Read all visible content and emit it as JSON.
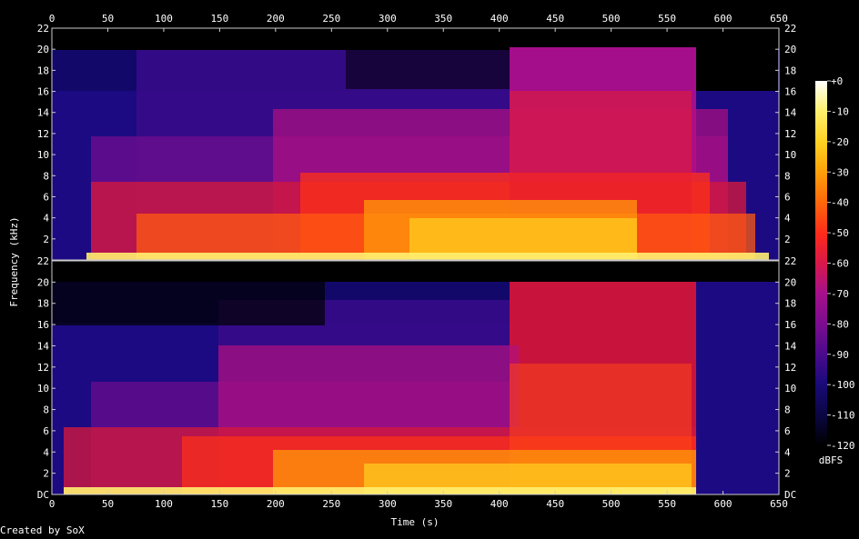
{
  "chart_data": {
    "type": "heatmap",
    "subtype": "spectrogram",
    "channels": 2,
    "xlabel": "Time (s)",
    "ylabel": "Frequency (kHz)",
    "xlim": [
      0,
      650
    ],
    "x_ticks": [
      0,
      50,
      100,
      150,
      200,
      250,
      300,
      350,
      400,
      450,
      500,
      550,
      600,
      650
    ],
    "ylim_khz": [
      0,
      22
    ],
    "y_ticks": [
      {
        "value": 22,
        "label": "22"
      },
      {
        "value": 20,
        "label": "20"
      },
      {
        "value": 18,
        "label": "18"
      },
      {
        "value": 16,
        "label": "16"
      },
      {
        "value": 14,
        "label": "14"
      },
      {
        "value": 12,
        "label": "12"
      },
      {
        "value": 10,
        "label": "10"
      },
      {
        "value": 8,
        "label": "8"
      },
      {
        "value": 6,
        "label": "6"
      },
      {
        "value": 4,
        "label": "4"
      },
      {
        "value": 2,
        "label": "2"
      }
    ],
    "bottom_dc_label": "DC",
    "colorbar": {
      "label": "dBFS",
      "range": [
        -120,
        0
      ],
      "ticks": [
        {
          "value": 0,
          "label": "+0"
        },
        {
          "value": -10,
          "label": "-10"
        },
        {
          "value": -20,
          "label": "-20"
        },
        {
          "value": -30,
          "label": "-30"
        },
        {
          "value": -40,
          "label": "-40"
        },
        {
          "value": -50,
          "label": "-50"
        },
        {
          "value": -60,
          "label": "-60"
        },
        {
          "value": -70,
          "label": "-70"
        },
        {
          "value": -80,
          "label": "-80"
        },
        {
          "value": -90,
          "label": "-90"
        },
        {
          "value": -100,
          "label": "-100"
        },
        {
          "value": -110,
          "label": "-110"
        },
        {
          "value": -120,
          "label": "-120"
        }
      ],
      "colors": [
        "#000000",
        "#0a0640",
        "#1a0a7a",
        "#4b0a8c",
        "#7a0c8f",
        "#a8108a",
        "#d8184a",
        "#ff2a1a",
        "#ff6a0a",
        "#ffa00a",
        "#ffd020",
        "#fff070",
        "#ffffff"
      ]
    }
  },
  "footer": {
    "credit": "Created by SoX"
  }
}
